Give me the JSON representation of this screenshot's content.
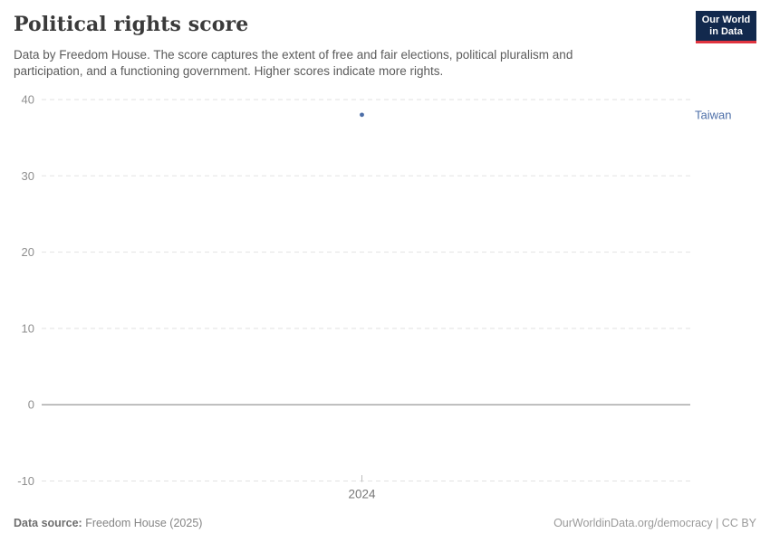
{
  "header": {
    "title": "Political rights score",
    "subtitle": "Data by Freedom House. The score captures the extent of free and fair elections, political pluralism and participation, and a functioning government. Higher scores indicate more rights.",
    "logo": {
      "line1": "Our World",
      "line2": "in Data",
      "bg_color": "#12294d",
      "accent_color": "#e0343f"
    }
  },
  "chart_data": {
    "type": "scatter",
    "title": "Political rights score",
    "x": [
      2024
    ],
    "series": [
      {
        "name": "Taiwan",
        "values": [
          38
        ],
        "color": "#4c6ea8"
      }
    ],
    "xlabel": "",
    "ylabel": "",
    "ylim": [
      -10,
      40
    ],
    "yticks": [
      -10,
      0,
      10,
      20,
      30,
      40
    ],
    "xtick_labels": [
      "2024"
    ],
    "grid": "horizontal dashed gridlines, solid line at 0",
    "legend_position": "entity label right of plot area",
    "gridline_color": "#e2e2e2",
    "zero_line_color": "#a9a9a9",
    "tick_label_color": "#8f8f8f",
    "x_tick_label_color": "#787878"
  },
  "footer": {
    "source_label": "Data source:",
    "source_value": " Freedom House (2025)",
    "credit": "OurWorldinData.org/democracy | CC BY"
  }
}
